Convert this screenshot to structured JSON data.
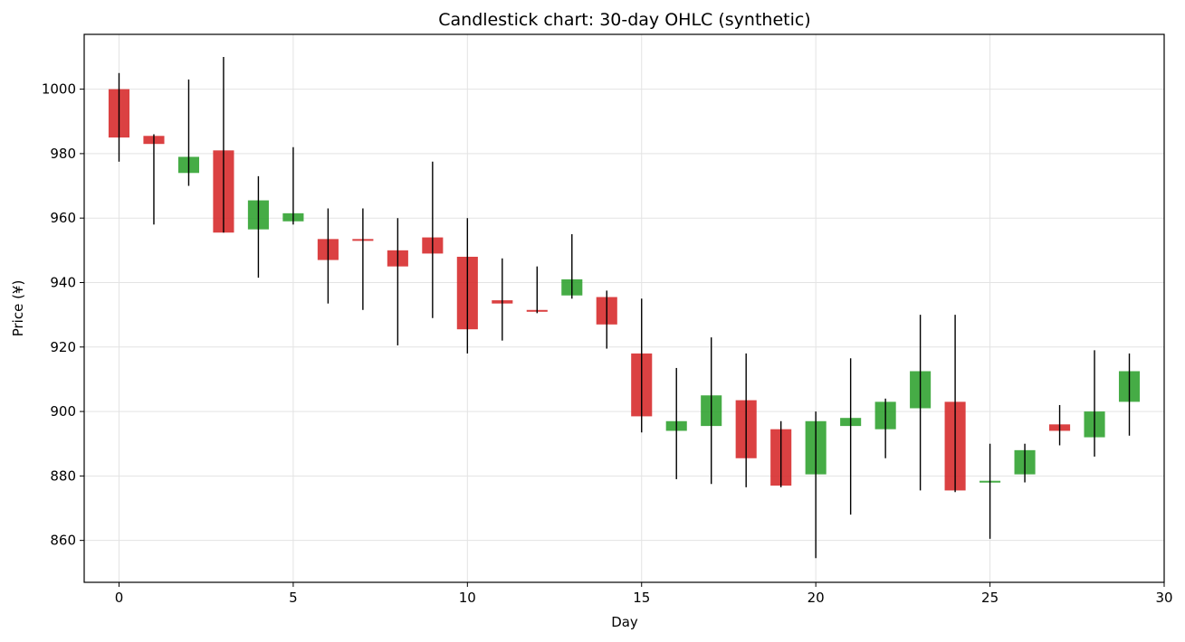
{
  "chart_data": {
    "type": "candlestick",
    "title": "Candlestick chart: 30-day OHLC (synthetic)",
    "xlabel": "Day",
    "ylabel": "Price (¥)",
    "xlim": [
      -1,
      30
    ],
    "ylim": [
      847,
      1017
    ],
    "xticks": [
      0,
      5,
      10,
      15,
      20,
      25,
      30
    ],
    "yticks": [
      860,
      880,
      900,
      920,
      940,
      960,
      980,
      1000
    ],
    "grid": true,
    "up_color": "#2ca02c",
    "down_color": "#d62728",
    "days": [
      0,
      1,
      2,
      3,
      4,
      5,
      6,
      7,
      8,
      9,
      10,
      11,
      12,
      13,
      14,
      15,
      16,
      17,
      18,
      19,
      20,
      21,
      22,
      23,
      24,
      25,
      26,
      27,
      28,
      29
    ],
    "open": [
      1000,
      985.5,
      974,
      981,
      956.5,
      959,
      953.5,
      953.5,
      950,
      954,
      948,
      934.5,
      931.5,
      936,
      935.5,
      918,
      894,
      895.5,
      903.5,
      894.5,
      880.5,
      895.5,
      894.5,
      901,
      903,
      878.5,
      880.5,
      896,
      892,
      903
    ],
    "high": [
      1005,
      986,
      1003,
      1010,
      973,
      982,
      963,
      963,
      960,
      977.5,
      960,
      947.5,
      945,
      955,
      937.5,
      935,
      913.5,
      923,
      918,
      897,
      900,
      916.5,
      904,
      930,
      930,
      890,
      890,
      902,
      919,
      918
    ],
    "low": [
      977.5,
      958,
      970,
      955.5,
      941.5,
      958,
      933.5,
      931.5,
      920.5,
      929,
      918,
      922,
      930.5,
      935,
      919.5,
      893.5,
      879,
      877.5,
      876.5,
      876.5,
      854.5,
      868,
      885.5,
      875.5,
      875,
      860.5,
      878,
      889.5,
      886,
      892.5
    ],
    "close": [
      985,
      983,
      979,
      955.5,
      965.5,
      961.5,
      947,
      953,
      945,
      949,
      925.5,
      933.5,
      931,
      941,
      927,
      898.5,
      897,
      905,
      885.5,
      877,
      897,
      898,
      903,
      912.5,
      875.5,
      878.5,
      888,
      894,
      900,
      912.5
    ]
  }
}
